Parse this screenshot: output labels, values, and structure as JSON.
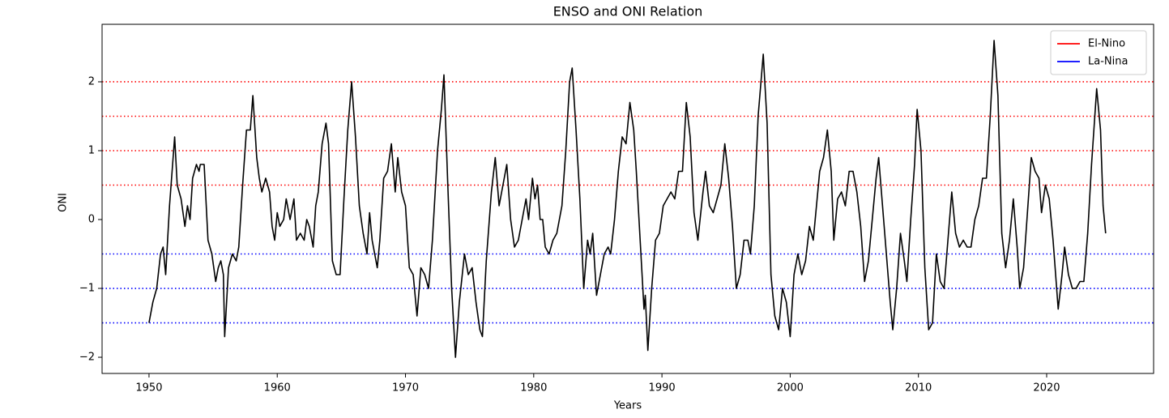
{
  "chart_data": {
    "type": "line",
    "title": "ENSO and ONI Relation",
    "xlabel": "Years",
    "ylabel": "ONI",
    "x": [
      1950.0,
      1950.3,
      1950.6,
      1950.9,
      1951.1,
      1951.3,
      1951.6,
      1951.8,
      1952.0,
      1952.2,
      1952.5,
      1952.8,
      1953.0,
      1953.2,
      1953.4,
      1953.7,
      1953.9,
      1954.0,
      1954.3,
      1954.6,
      1954.9,
      1955.2,
      1955.4,
      1955.6,
      1955.8,
      1955.9,
      1956.2,
      1956.5,
      1956.8,
      1957.0,
      1957.3,
      1957.6,
      1957.9,
      1958.1,
      1958.4,
      1958.6,
      1958.8,
      1959.1,
      1959.4,
      1959.6,
      1959.8,
      1960.0,
      1960.2,
      1960.5,
      1960.7,
      1961.0,
      1961.3,
      1961.5,
      1961.8,
      1962.1,
      1962.3,
      1962.5,
      1962.8,
      1963.0,
      1963.2,
      1963.5,
      1963.8,
      1964.0,
      1964.3,
      1964.6,
      1964.9,
      1965.2,
      1965.5,
      1965.8,
      1966.1,
      1966.4,
      1966.7,
      1967.0,
      1967.2,
      1967.4,
      1967.6,
      1967.8,
      1968.0,
      1968.3,
      1968.6,
      1968.9,
      1969.2,
      1969.4,
      1969.7,
      1970.0,
      1970.3,
      1970.6,
      1970.9,
      1971.2,
      1971.5,
      1971.8,
      1972.1,
      1972.5,
      1972.8,
      1973.0,
      1973.3,
      1973.6,
      1973.9,
      1974.2,
      1974.6,
      1974.9,
      1975.2,
      1975.5,
      1975.8,
      1976.0,
      1976.3,
      1976.7,
      1977.0,
      1977.3,
      1977.6,
      1977.9,
      1978.2,
      1978.5,
      1978.8,
      1979.1,
      1979.4,
      1979.6,
      1979.9,
      1980.1,
      1980.3,
      1980.5,
      1980.7,
      1980.9,
      1981.2,
      1981.5,
      1981.8,
      1982.2,
      1982.5,
      1982.8,
      1983.0,
      1983.3,
      1983.6,
      1983.9,
      1984.2,
      1984.4,
      1984.6,
      1984.9,
      1985.2,
      1985.5,
      1985.8,
      1986.0,
      1986.3,
      1986.6,
      1986.9,
      1987.2,
      1987.5,
      1987.8,
      1988.0,
      1988.3,
      1988.6,
      1988.7,
      1988.9,
      1989.2,
      1989.5,
      1989.8,
      1990.1,
      1990.4,
      1990.7,
      1991.0,
      1991.3,
      1991.6,
      1991.9,
      1992.2,
      1992.5,
      1992.8,
      1993.2,
      1993.4,
      1993.7,
      1994.0,
      1994.3,
      1994.6,
      1994.9,
      1995.2,
      1995.5,
      1995.8,
      1996.1,
      1996.4,
      1996.7,
      1996.9,
      1997.2,
      1997.5,
      1997.9,
      1998.2,
      1998.5,
      1998.8,
      1999.1,
      1999.4,
      1999.7,
      2000.0,
      2000.3,
      2000.6,
      2000.9,
      2001.2,
      2001.5,
      2001.8,
      2002.0,
      2002.3,
      2002.6,
      2002.9,
      2003.2,
      2003.4,
      2003.7,
      2004.0,
      2004.3,
      2004.6,
      2004.9,
      2005.2,
      2005.5,
      2005.8,
      2006.1,
      2006.4,
      2006.7,
      2006.9,
      2007.2,
      2007.5,
      2007.8,
      2008.0,
      2008.3,
      2008.6,
      2008.9,
      2009.1,
      2009.4,
      2009.7,
      2009.9,
      2010.2,
      2010.5,
      2010.8,
      2011.1,
      2011.4,
      2011.7,
      2012.0,
      2012.3,
      2012.6,
      2012.9,
      2013.2,
      2013.5,
      2013.8,
      2014.1,
      2014.4,
      2014.7,
      2015.0,
      2015.3,
      2015.6,
      2015.9,
      2016.2,
      2016.5,
      2016.8,
      2017.1,
      2017.4,
      2017.7,
      2017.9,
      2018.2,
      2018.5,
      2018.8,
      2019.1,
      2019.4,
      2019.6,
      2019.9,
      2020.2,
      2020.5,
      2020.9,
      2021.2,
      2021.4,
      2021.7,
      2022.0,
      2022.3,
      2022.6,
      2022.9,
      2023.2,
      2023.5,
      2023.9,
      2024.2,
      2024.4,
      2024.6
    ],
    "series": [
      {
        "color": "#000000",
        "values": [
          -1.5,
          -1.2,
          -1.0,
          -0.5,
          -0.4,
          -0.8,
          0.2,
          0.7,
          1.2,
          0.5,
          0.3,
          -0.1,
          0.2,
          0.0,
          0.6,
          0.8,
          0.7,
          0.8,
          0.8,
          -0.3,
          -0.5,
          -0.9,
          -0.7,
          -0.6,
          -0.8,
          -1.7,
          -0.7,
          -0.5,
          -0.6,
          -0.4,
          0.5,
          1.3,
          1.3,
          1.8,
          0.9,
          0.6,
          0.4,
          0.6,
          0.4,
          -0.1,
          -0.3,
          0.1,
          -0.1,
          0.0,
          0.3,
          0.0,
          0.3,
          -0.3,
          -0.2,
          -0.3,
          0.0,
          -0.1,
          -0.4,
          0.2,
          0.4,
          1.1,
          1.4,
          1.1,
          -0.6,
          -0.8,
          -0.8,
          0.3,
          1.3,
          2.0,
          1.2,
          0.2,
          -0.2,
          -0.5,
          0.1,
          -0.3,
          -0.5,
          -0.7,
          -0.3,
          0.6,
          0.7,
          1.1,
          0.4,
          0.9,
          0.4,
          0.2,
          -0.7,
          -0.8,
          -1.4,
          -0.7,
          -0.8,
          -1.0,
          -0.3,
          1.0,
          1.6,
          2.1,
          0.5,
          -1.0,
          -2.0,
          -1.2,
          -0.5,
          -0.8,
          -0.7,
          -1.2,
          -1.6,
          -1.7,
          -0.6,
          0.4,
          0.9,
          0.2,
          0.5,
          0.8,
          0.0,
          -0.4,
          -0.3,
          0.0,
          0.3,
          0.0,
          0.6,
          0.3,
          0.5,
          0.0,
          0.0,
          -0.4,
          -0.5,
          -0.3,
          -0.2,
          0.2,
          1.0,
          2.0,
          2.2,
          1.3,
          0.3,
          -1.0,
          -0.3,
          -0.5,
          -0.2,
          -1.1,
          -0.8,
          -0.5,
          -0.4,
          -0.5,
          0.0,
          0.7,
          1.2,
          1.1,
          1.7,
          1.3,
          0.7,
          -0.3,
          -1.3,
          -1.1,
          -1.9,
          -1.0,
          -0.3,
          -0.2,
          0.2,
          0.3,
          0.4,
          0.3,
          0.7,
          0.7,
          1.7,
          1.2,
          0.1,
          -0.3,
          0.4,
          0.7,
          0.2,
          0.1,
          0.3,
          0.5,
          1.1,
          0.6,
          -0.1,
          -1.0,
          -0.8,
          -0.3,
          -0.3,
          -0.5,
          0.2,
          1.5,
          2.4,
          1.4,
          -0.8,
          -1.4,
          -1.6,
          -1.0,
          -1.2,
          -1.7,
          -0.8,
          -0.5,
          -0.8,
          -0.6,
          -0.1,
          -0.3,
          0.1,
          0.7,
          0.9,
          1.3,
          0.7,
          -0.3,
          0.3,
          0.4,
          0.2,
          0.7,
          0.7,
          0.4,
          -0.1,
          -0.9,
          -0.6,
          0.0,
          0.6,
          0.9,
          0.2,
          -0.5,
          -1.2,
          -1.6,
          -1.0,
          -0.2,
          -0.6,
          -0.9,
          0.0,
          0.8,
          1.6,
          1.0,
          -0.7,
          -1.6,
          -1.5,
          -0.5,
          -0.9,
          -1.0,
          -0.3,
          0.4,
          -0.2,
          -0.4,
          -0.3,
          -0.4,
          -0.4,
          0.0,
          0.2,
          0.6,
          0.6,
          1.5,
          2.6,
          1.8,
          -0.2,
          -0.7,
          -0.3,
          0.3,
          -0.4,
          -1.0,
          -0.7,
          0.1,
          0.9,
          0.7,
          0.6,
          0.1,
          0.5,
          0.3,
          -0.3,
          -1.3,
          -0.8,
          -0.4,
          -0.8,
          -1.0,
          -1.0,
          -0.9,
          -0.9,
          -0.2,
          0.8,
          1.9,
          1.3,
          0.2,
          -0.2
        ]
      }
    ],
    "reference_lines": [
      {
        "name": "El-Nino",
        "color": "#ff0000",
        "values": [
          0.5,
          1,
          1.5,
          2
        ]
      },
      {
        "name": "La-Nina",
        "color": "#0000ff",
        "values": [
          -0.5,
          -1,
          -1.5
        ]
      }
    ],
    "xlim": [
      1946.34,
      2028.34
    ],
    "xticks": [
      1950,
      1960,
      1970,
      1980,
      1990,
      2000,
      2010,
      2020
    ],
    "ylim": [
      -2.235,
      2.835
    ],
    "yticks": [
      {
        "value": -2,
        "label": "−2"
      },
      {
        "value": -1,
        "label": "−1"
      },
      0,
      1,
      2
    ],
    "legend": "upper right"
  }
}
